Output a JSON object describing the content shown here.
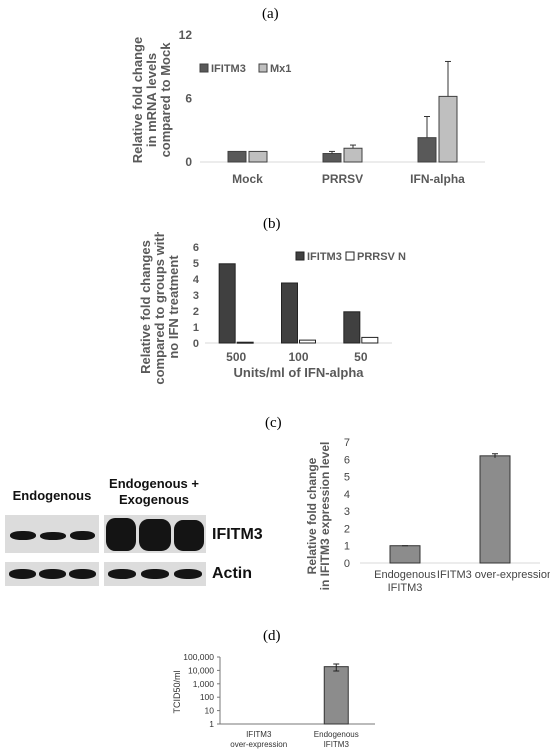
{
  "panels": {
    "a": "(a)",
    "b": "(b)",
    "c": "(c)",
    "d": "(d)"
  },
  "blot": {
    "header_endogenous": "Endogenous",
    "header_exogenous": "Endogenous + Exogenous",
    "row_ifitm3": "IFITM3",
    "row_actin": "Actin"
  },
  "colors": {
    "dark_bar": "#595959",
    "light_bar": "#bfbfbf",
    "medium_bar": "#8c8c8c",
    "axis_text": "#595959",
    "grid": "#d9d9d9"
  },
  "chart_data": [
    {
      "id": "a",
      "type": "bar",
      "categories": [
        "Mock",
        "PRRSV",
        "IFN-alpha"
      ],
      "series": [
        {
          "name": "IFITM3",
          "values": [
            1.0,
            0.8,
            2.3
          ],
          "errors": [
            0.0,
            0.2,
            2.0
          ]
        },
        {
          "name": "Mx1",
          "values": [
            1.0,
            1.3,
            6.2
          ],
          "errors": [
            0.0,
            0.3,
            3.3
          ]
        }
      ],
      "ylabel": "Relative fold change in mRNA levels compared to Mock",
      "yticks": [
        0,
        6,
        12
      ],
      "ylim": [
        0,
        12
      ],
      "legend": "top-left"
    },
    {
      "id": "b",
      "type": "bar",
      "categories": [
        "500",
        "100",
        "50"
      ],
      "series": [
        {
          "name": "IFITM3",
          "values": [
            4.95,
            3.75,
            1.95
          ]
        },
        {
          "name": "PRRSV N",
          "values": [
            0.05,
            0.18,
            0.35
          ]
        }
      ],
      "xlabel": "Units/ml of IFN-alpha",
      "ylabel": "Relative fold changes compared to groups with no IFN treatment",
      "yticks": [
        0,
        1,
        2,
        3,
        4,
        5,
        6
      ],
      "ylim": [
        0,
        6
      ],
      "legend": "top-right"
    },
    {
      "id": "c",
      "type": "bar",
      "categories": [
        "Endogenous IFITM3",
        "IFITM3 over-expression"
      ],
      "values": [
        1.0,
        6.2
      ],
      "errors": [
        0.0,
        0.12
      ],
      "ylabel": "Relative fold change in IFITM3 expression level",
      "yticks": [
        0,
        1,
        2,
        3,
        4,
        5,
        6,
        7
      ],
      "ylim": [
        0,
        7
      ]
    },
    {
      "id": "d",
      "type": "bar",
      "categories": [
        "IFITM3 over-expression",
        "Endogenous IFITM3"
      ],
      "values": [
        0,
        19000
      ],
      "error_low": [
        0,
        9000
      ],
      "error_high": [
        0,
        30000
      ],
      "ylabel": "TCID50/ml",
      "yticks": [
        "1",
        "10",
        "100",
        "1,000",
        "10,000",
        "100,000"
      ],
      "ylim": [
        1,
        100000
      ],
      "yscale": "log"
    }
  ]
}
